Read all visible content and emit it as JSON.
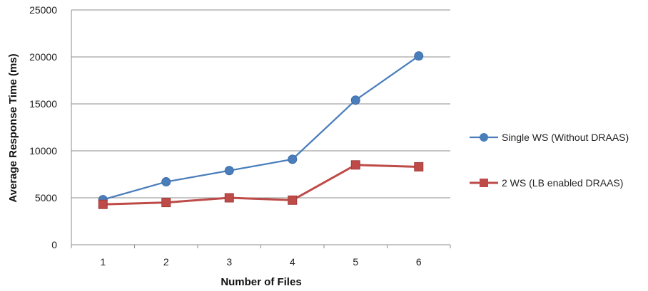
{
  "chart_data": {
    "type": "line",
    "title": "",
    "xlabel": "Number of Files",
    "ylabel": "Average Response Time (ms)",
    "categories": [
      "1",
      "2",
      "3",
      "4",
      "5",
      "6"
    ],
    "ylim": [
      0,
      25000
    ],
    "yticks": [
      0,
      5000,
      10000,
      15000,
      20000,
      25000
    ],
    "grid": "horizontal",
    "legend_position": "right",
    "series": [
      {
        "name": "Single WS (Without DRAAS)",
        "values": [
          4800,
          6700,
          7900,
          9100,
          15400,
          20100
        ],
        "color": "#4a7ebb",
        "marker": "circle"
      },
      {
        "name": "2 WS (LB enabled DRAAS)",
        "values": [
          4300,
          4500,
          5000,
          4750,
          8500,
          8300
        ],
        "color": "#be4b48",
        "marker": "square"
      }
    ]
  }
}
